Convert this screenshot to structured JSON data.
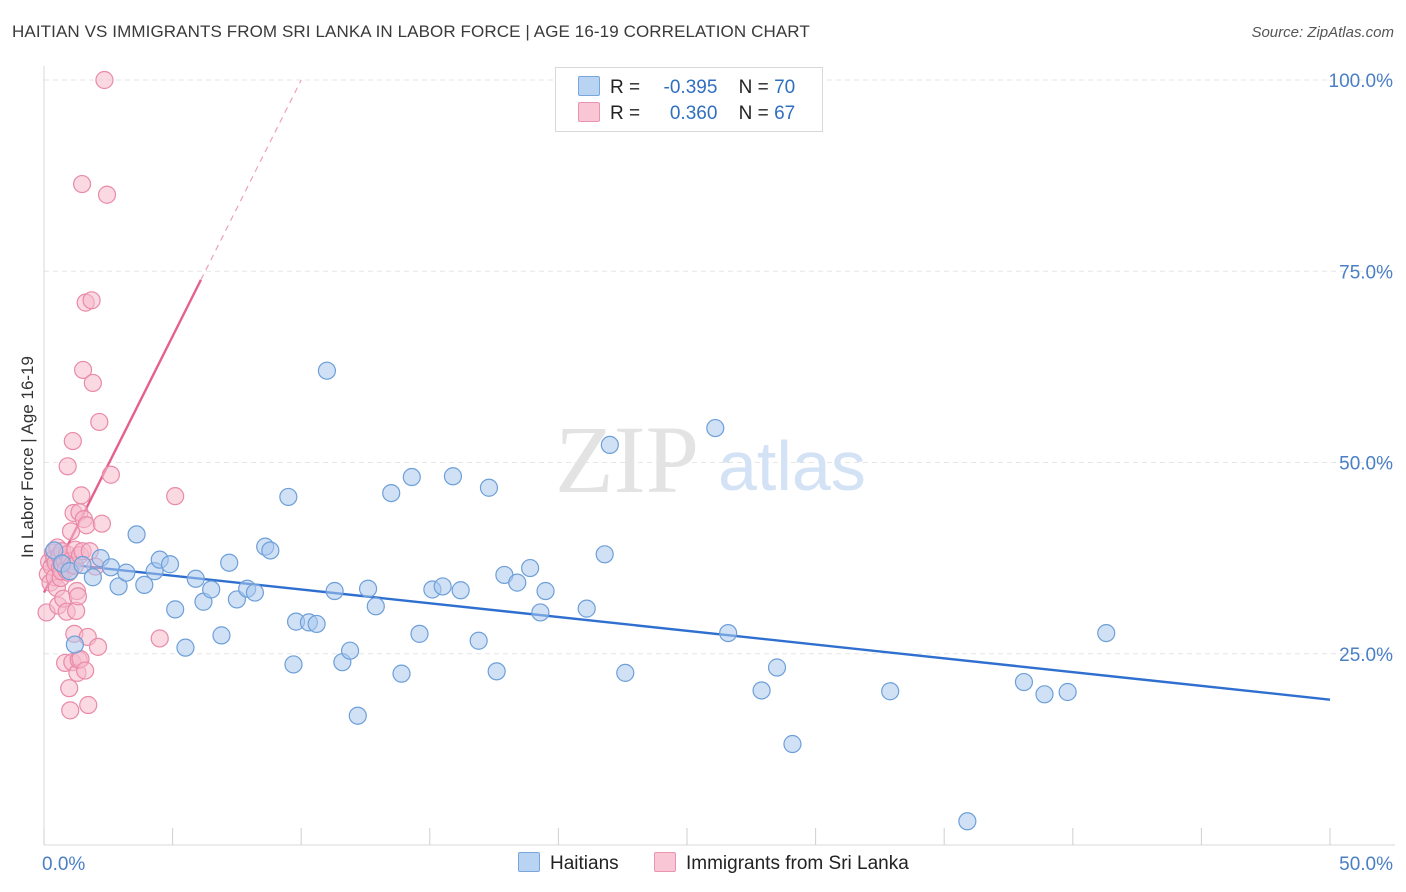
{
  "title": "HAITIAN VS IMMIGRANTS FROM SRI LANKA IN LABOR FORCE | AGE 16-19 CORRELATION CHART",
  "source": "Source: ZipAtlas.com",
  "watermark": {
    "zip": "ZIP",
    "atlas": "atlas"
  },
  "colors": {
    "blue_fill": "#a9c8ef",
    "blue_stroke": "#6d9fd8",
    "blue_line": "#2f6fcf",
    "pink_fill": "#f6b9cc",
    "pink_stroke": "#e98aa8",
    "pink_line": "#e5608e",
    "grid": "#e6e6e6",
    "tick_text": "#4a7fc4"
  },
  "legend": {
    "r_label": "R =",
    "n_label": "N =",
    "series": [
      {
        "r": "-0.395",
        "n": "70"
      },
      {
        "r": "0.360",
        "n": "67"
      }
    ]
  },
  "chart_data": {
    "type": "scatter",
    "title": "HAITIAN VS IMMIGRANTS FROM SRI LANKA IN LABOR FORCE | AGE 16-19 CORRELATION CHART",
    "xlabel": "",
    "ylabel": "In Labor Force | Age 16-19",
    "xlim": [
      0,
      50
    ],
    "ylim": [
      0,
      100
    ],
    "x_tick_labels": [
      "0.0%",
      "50.0%"
    ],
    "y_ticks": [
      25,
      50,
      75,
      100
    ],
    "y_tick_labels": [
      "25.0%",
      "50.0%",
      "75.0%",
      "100.0%"
    ],
    "series": [
      {
        "name": "Haitians",
        "color": "#6d9fd8",
        "trend": {
          "x0": 0,
          "y0": 37.0,
          "x1": 50,
          "y1": 19.0,
          "solid_to": 50
        },
        "points": [
          [
            0.4,
            38.5
          ],
          [
            0.7,
            36.8
          ],
          [
            1.0,
            35.8
          ],
          [
            1.2,
            26.2
          ],
          [
            1.5,
            36.6
          ],
          [
            1.9,
            35.0
          ],
          [
            2.2,
            37.5
          ],
          [
            2.6,
            36.3
          ],
          [
            2.9,
            33.8
          ],
          [
            3.2,
            35.6
          ],
          [
            3.6,
            40.6
          ],
          [
            3.9,
            34.0
          ],
          [
            4.3,
            35.8
          ],
          [
            4.5,
            37.3
          ],
          [
            4.9,
            36.7
          ],
          [
            5.1,
            30.8
          ],
          [
            5.5,
            25.8
          ],
          [
            5.9,
            34.8
          ],
          [
            6.2,
            31.8
          ],
          [
            6.5,
            33.4
          ],
          [
            6.9,
            27.4
          ],
          [
            7.2,
            36.9
          ],
          [
            7.5,
            32.1
          ],
          [
            7.9,
            33.5
          ],
          [
            8.2,
            33.0
          ],
          [
            8.6,
            39.0
          ],
          [
            8.8,
            38.5
          ],
          [
            9.5,
            45.5
          ],
          [
            9.7,
            23.6
          ],
          [
            9.8,
            29.2
          ],
          [
            10.3,
            29.1
          ],
          [
            10.6,
            28.9
          ],
          [
            11.0,
            62.0
          ],
          [
            11.3,
            33.2
          ],
          [
            11.6,
            23.9
          ],
          [
            11.9,
            25.4
          ],
          [
            12.2,
            16.9
          ],
          [
            12.6,
            33.5
          ],
          [
            12.9,
            31.2
          ],
          [
            13.5,
            46.0
          ],
          [
            13.9,
            22.4
          ],
          [
            14.3,
            48.1
          ],
          [
            14.6,
            27.6
          ],
          [
            15.1,
            33.4
          ],
          [
            15.5,
            33.8
          ],
          [
            15.9,
            48.2
          ],
          [
            16.2,
            33.3
          ],
          [
            16.9,
            26.7
          ],
          [
            17.3,
            46.7
          ],
          [
            17.6,
            22.7
          ],
          [
            17.9,
            35.3
          ],
          [
            18.4,
            34.3
          ],
          [
            18.9,
            36.2
          ],
          [
            19.3,
            30.4
          ],
          [
            19.5,
            33.2
          ],
          [
            21.1,
            30.9
          ],
          [
            21.8,
            38.0
          ],
          [
            22.0,
            52.3
          ],
          [
            22.6,
            22.5
          ],
          [
            26.1,
            54.5
          ],
          [
            26.6,
            27.7
          ],
          [
            27.9,
            20.2
          ],
          [
            28.5,
            23.2
          ],
          [
            29.1,
            13.2
          ],
          [
            32.9,
            20.1
          ],
          [
            35.9,
            3.1
          ],
          [
            38.1,
            21.3
          ],
          [
            38.9,
            19.7
          ],
          [
            39.8,
            20.0
          ],
          [
            41.3,
            27.7
          ]
        ]
      },
      {
        "name": "Immigrants from Sri Lanka",
        "color": "#e98aa8",
        "trend": {
          "x0": 0,
          "y0": 33.0,
          "x1": 10,
          "y1": 100.0,
          "solid_to": 6.1
        },
        "points": [
          [
            0.1,
            30.4
          ],
          [
            0.15,
            35.4
          ],
          [
            0.2,
            37.0
          ],
          [
            0.25,
            34.3
          ],
          [
            0.3,
            36.4
          ],
          [
            0.35,
            38.2
          ],
          [
            0.4,
            37.5
          ],
          [
            0.42,
            35.0
          ],
          [
            0.45,
            36.9
          ],
          [
            0.5,
            33.6
          ],
          [
            0.52,
            38.9
          ],
          [
            0.55,
            31.3
          ],
          [
            0.6,
            37.8
          ],
          [
            0.62,
            36.2
          ],
          [
            0.65,
            34.9
          ],
          [
            0.68,
            35.8
          ],
          [
            0.7,
            38.4
          ],
          [
            0.72,
            36.7
          ],
          [
            0.75,
            32.2
          ],
          [
            0.8,
            37.2
          ],
          [
            0.82,
            23.8
          ],
          [
            0.85,
            36.0
          ],
          [
            0.88,
            30.5
          ],
          [
            0.9,
            38.0
          ],
          [
            0.92,
            49.5
          ],
          [
            0.95,
            35.6
          ],
          [
            0.98,
            20.5
          ],
          [
            1.0,
            37.1
          ],
          [
            1.02,
            17.6
          ],
          [
            1.05,
            41.0
          ],
          [
            1.08,
            36.6
          ],
          [
            1.1,
            23.9
          ],
          [
            1.12,
            52.8
          ],
          [
            1.15,
            43.4
          ],
          [
            1.18,
            27.6
          ],
          [
            1.2,
            36.5
          ],
          [
            1.22,
            38.6
          ],
          [
            1.25,
            30.6
          ],
          [
            1.28,
            33.2
          ],
          [
            1.3,
            22.5
          ],
          [
            1.32,
            32.5
          ],
          [
            1.35,
            24.2
          ],
          [
            1.38,
            43.5
          ],
          [
            1.4,
            37.9
          ],
          [
            1.42,
            24.3
          ],
          [
            1.45,
            45.7
          ],
          [
            1.48,
            86.4
          ],
          [
            1.5,
            38.4
          ],
          [
            1.52,
            62.1
          ],
          [
            1.55,
            42.6
          ],
          [
            1.6,
            22.8
          ],
          [
            1.62,
            70.9
          ],
          [
            1.65,
            41.8
          ],
          [
            1.7,
            27.2
          ],
          [
            1.72,
            18.3
          ],
          [
            1.78,
            38.4
          ],
          [
            1.85,
            71.2
          ],
          [
            1.9,
            60.4
          ],
          [
            2.0,
            36.4
          ],
          [
            2.1,
            25.9
          ],
          [
            2.15,
            55.3
          ],
          [
            2.25,
            42.0
          ],
          [
            2.35,
            100.0
          ],
          [
            2.45,
            85.0
          ],
          [
            2.6,
            48.4
          ],
          [
            5.1,
            45.6
          ],
          [
            4.5,
            27.0
          ]
        ]
      }
    ]
  },
  "bottom_legend": {
    "items": [
      "Haitians",
      "Immigrants from Sri Lanka"
    ]
  }
}
